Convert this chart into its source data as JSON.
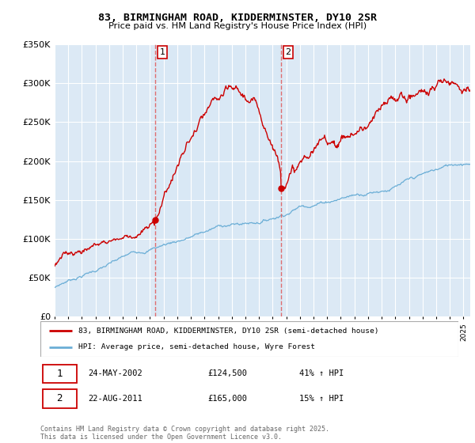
{
  "title": "83, BIRMINGHAM ROAD, KIDDERMINSTER, DY10 2SR",
  "subtitle": "Price paid vs. HM Land Registry's House Price Index (HPI)",
  "ylim": [
    0,
    350000
  ],
  "xlim_start": 1995.0,
  "xlim_end": 2025.5,
  "purchase1_date": 2002.39,
  "purchase1_price": 124500,
  "purchase2_date": 2011.64,
  "purchase2_price": 165000,
  "legend_line1": "83, BIRMINGHAM ROAD, KIDDERMINSTER, DY10 2SR (semi-detached house)",
  "legend_line2": "HPI: Average price, semi-detached house, Wyre Forest",
  "table_row1": [
    "1",
    "24-MAY-2002",
    "£124,500",
    "41% ↑ HPI"
  ],
  "table_row2": [
    "2",
    "22-AUG-2011",
    "£165,000",
    "15% ↑ HPI"
  ],
  "footer": "Contains HM Land Registry data © Crown copyright and database right 2025.\nThis data is licensed under the Open Government Licence v3.0.",
  "hpi_color": "#6baed6",
  "price_color": "#cc0000",
  "vline_color": "#e06060",
  "bg_color": "#dce9f5",
  "grid_color": "#ffffff",
  "shade_color": "#d8e8f5"
}
